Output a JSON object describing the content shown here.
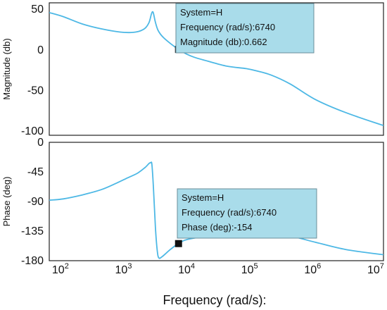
{
  "chart_data": [
    {
      "type": "line",
      "panel": "magnitude",
      "ylabel": "Magnitude (db)",
      "xscale": "log",
      "xlim": [
        60,
        12000000
      ],
      "ylim": [
        -105,
        58
      ],
      "yticks": [
        50,
        0,
        -50,
        -100
      ],
      "xticks_visible": false,
      "grid": false,
      "series": [
        {
          "color": "#4db8e5",
          "points": [
            [
              60,
              46
            ],
            [
              100,
              41
            ],
            [
              200,
              32
            ],
            [
              400,
              26
            ],
            [
              800,
              22
            ],
            [
              1200,
              21.5
            ],
            [
              1600,
              23
            ],
            [
              2000,
              27
            ],
            [
              2300,
              34
            ],
            [
              2500,
              44
            ],
            [
              2600,
              47
            ],
            [
              2700,
              45
            ],
            [
              2900,
              34
            ],
            [
              3200,
              24
            ],
            [
              3800,
              16
            ],
            [
              5000,
              8
            ],
            [
              6740,
              0.662
            ],
            [
              9000,
              -5
            ],
            [
              12000,
              -9
            ],
            [
              20000,
              -14
            ],
            [
              40000,
              -20
            ],
            [
              80000,
              -23
            ],
            [
              120000,
              -26
            ],
            [
              200000,
              -31
            ],
            [
              400000,
              -42
            ],
            [
              1000000,
              -61
            ],
            [
              3000000,
              -77
            ],
            [
              12000000,
              -93
            ]
          ]
        }
      ],
      "marker": {
        "x": 6740,
        "y": 0.662
      },
      "tooltip": {
        "system": "System=H",
        "frequency": "Frequency (rad/s):6740",
        "value": "Magnitude (db):0.662"
      }
    },
    {
      "type": "line",
      "panel": "phase",
      "ylabel": "Phase (deg)",
      "xlabel": "Frequency (rad/s):",
      "xscale": "log",
      "xlim": [
        60,
        12000000
      ],
      "ylim": [
        -180,
        0
      ],
      "yticks": [
        0,
        -45,
        -90,
        -135,
        -180
      ],
      "xticks": [
        100,
        1000,
        10000,
        100000,
        1000000,
        10000000
      ],
      "xtick_labels": [
        {
          "base": "10",
          "exp": "2"
        },
        {
          "base": "10",
          "exp": "3"
        },
        {
          "base": "10",
          "exp": "4"
        },
        {
          "base": "10",
          "exp": "5"
        },
        {
          "base": "10",
          "exp": "6"
        },
        {
          "base": "10",
          "exp": "7"
        }
      ],
      "grid": false,
      "series": [
        {
          "color": "#4db8e5",
          "points": [
            [
              60,
              -88
            ],
            [
              100,
              -86
            ],
            [
              200,
              -80
            ],
            [
              400,
              -72
            ],
            [
              700,
              -62
            ],
            [
              1000,
              -55
            ],
            [
              1500,
              -47
            ],
            [
              2000,
              -38
            ],
            [
              2300,
              -32
            ],
            [
              2450,
              -31
            ],
            [
              2550,
              -34
            ],
            [
              2700,
              -70
            ],
            [
              2900,
              -130
            ],
            [
              3100,
              -165
            ],
            [
              3300,
              -176
            ],
            [
              3800,
              -173
            ],
            [
              5000,
              -163
            ],
            [
              6740,
              -154
            ],
            [
              10000,
              -147
            ],
            [
              30000,
              -141
            ],
            [
              100000,
              -138
            ],
            [
              300000,
              -140
            ],
            [
              1000000,
              -152
            ],
            [
              3000000,
              -163
            ],
            [
              12000000,
              -171
            ]
          ]
        }
      ],
      "marker": {
        "x": 6740,
        "y": -154
      },
      "tooltip": {
        "system": "System=H",
        "frequency": "Frequency (rad/s):6740",
        "value": "Phase (deg):-154"
      }
    }
  ]
}
